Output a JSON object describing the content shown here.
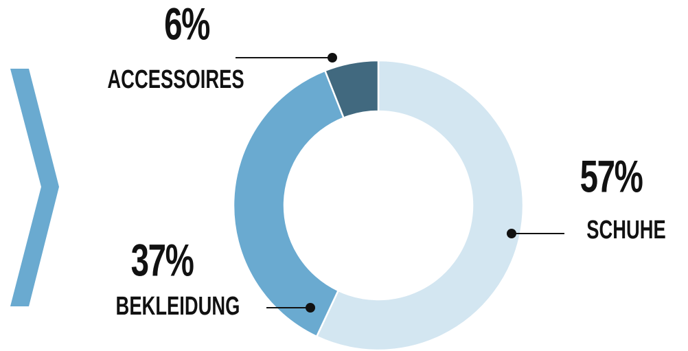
{
  "chart_data": {
    "type": "donut",
    "categories": [
      "SCHUHE",
      "BEKLEIDUNG",
      "ACCESSOIRES"
    ],
    "values": [
      57,
      37,
      6
    ],
    "value_labels": [
      "57%",
      "37%",
      "6%"
    ],
    "colors": [
      "#d3e6f1",
      "#6aaad0",
      "#41697f"
    ]
  }
}
